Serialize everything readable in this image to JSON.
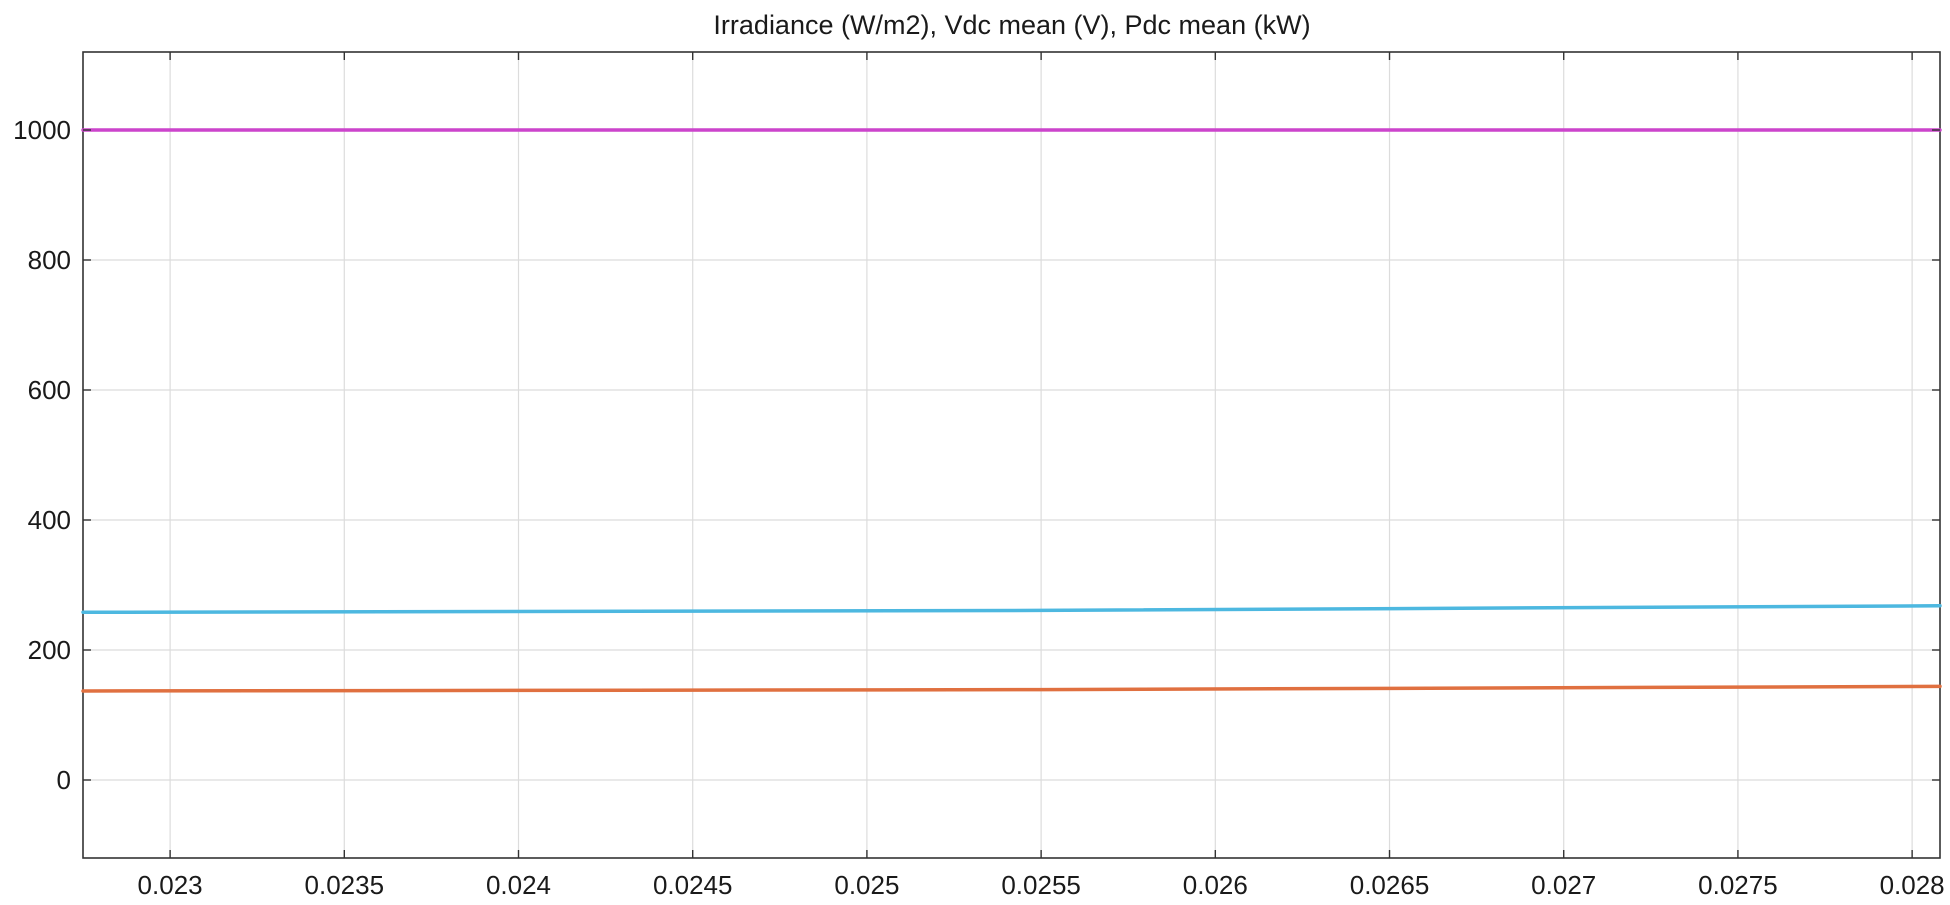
{
  "chart_data": {
    "type": "line",
    "title": "Irradiance (W/m2), Vdc mean (V), Pdc mean (kW)",
    "xlabel": "",
    "ylabel": "",
    "xlim": [
      0.02275,
      0.02808
    ],
    "ylim": [
      -120,
      1120
    ],
    "grid": true,
    "xticks": [
      0.023,
      0.0235,
      0.024,
      0.0245,
      0.025,
      0.0255,
      0.026,
      0.0265,
      0.027,
      0.0275,
      0.028
    ],
    "xtick_labels": [
      "0.023",
      "0.0235",
      "0.024",
      "0.0245",
      "0.025",
      "0.0255",
      "0.026",
      "0.0265",
      "0.027",
      "0.0275",
      "0.028"
    ],
    "yticks": [
      0,
      200,
      400,
      600,
      800,
      1000
    ],
    "ytick_labels": [
      "0",
      "200",
      "400",
      "600",
      "800",
      "1000"
    ],
    "series": [
      {
        "color": "#cc44cc",
        "x": [
          0.02275,
          0.02808
        ],
        "y": [
          1000,
          1000
        ]
      },
      {
        "color": "#4db8e0",
        "x": [
          0.02275,
          0.0255,
          0.02808
        ],
        "y": [
          258,
          261,
          268
        ]
      },
      {
        "color": "#e07040",
        "x": [
          0.02275,
          0.0255,
          0.02808
        ],
        "y": [
          137,
          139,
          144
        ]
      }
    ]
  }
}
